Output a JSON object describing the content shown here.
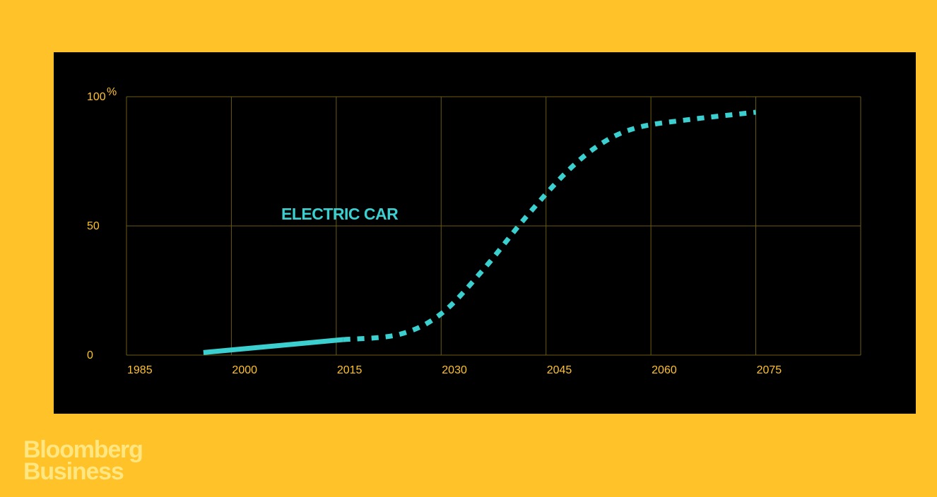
{
  "colors": {
    "background": "#FFC229",
    "panel": "#000000",
    "grid": "#6B5A14",
    "tick_text": "#FFC229",
    "series": "#3CCFCF",
    "brand": "#FFE680"
  },
  "brand": {
    "line1": "Bloomberg",
    "line2": "Business"
  },
  "chart_data": {
    "type": "line",
    "title": "",
    "xlabel": "",
    "ylabel": "",
    "x_ticks": [
      "1985",
      "2000",
      "2015",
      "2030",
      "2045",
      "2060",
      "2075"
    ],
    "y_ticks": [
      {
        "value": 0,
        "label": "0",
        "unit": ""
      },
      {
        "value": 50,
        "label": "50",
        "unit": ""
      },
      {
        "value": 100,
        "label": "100",
        "unit": "%"
      }
    ],
    "xlim": [
      1985,
      2090
    ],
    "ylim": [
      0,
      100
    ],
    "grid": true,
    "series": [
      {
        "name": "ELECTRIC CAR",
        "segments": [
          {
            "style": "solid",
            "points": [
              [
                1996,
                1
              ],
              [
                2016,
                6
              ]
            ]
          },
          {
            "style": "dotted",
            "points": [
              [
                2016,
                6
              ],
              [
                2024,
                8
              ],
              [
                2030,
                16
              ],
              [
                2036,
                33
              ],
              [
                2042,
                53
              ],
              [
                2048,
                71
              ],
              [
                2053,
                82
              ],
              [
                2058,
                88
              ],
              [
                2065,
                91
              ],
              [
                2075,
                94
              ]
            ]
          }
        ]
      }
    ]
  }
}
